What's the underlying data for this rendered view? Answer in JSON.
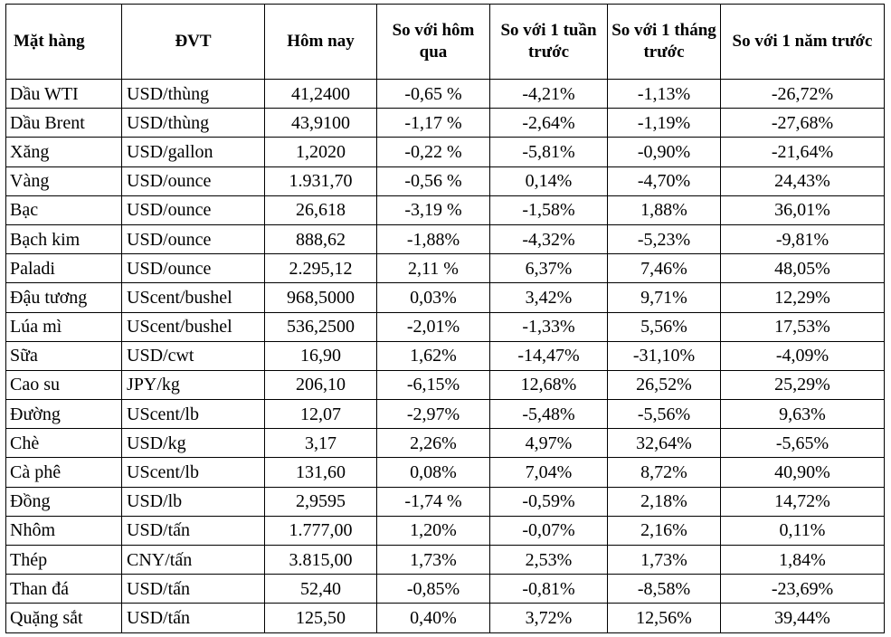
{
  "headers": [
    "Mặt hàng",
    "ĐVT",
    "Hôm nay",
    "So với hôm qua",
    "So với 1 tuần trước",
    "So với 1 tháng trước",
    "So với 1 năm trước"
  ],
  "rows": [
    [
      "Dầu WTI",
      "USD/thùng",
      "41,2400",
      "-0,65 %",
      "-4,21%",
      "-1,13%",
      "-26,72%"
    ],
    [
      "Dầu Brent",
      "USD/thùng",
      "43,9100",
      "-1,17 %",
      "-2,64%",
      "-1,19%",
      "-27,68%"
    ],
    [
      "Xăng",
      "USD/gallon",
      "1,2020",
      "-0,22 %",
      "-5,81%",
      "-0,90%",
      "-21,64%"
    ],
    [
      "Vàng",
      "USD/ounce",
      "1.931,70",
      "-0,56 %",
      "0,14%",
      "-4,70%",
      "24,43%"
    ],
    [
      "Bạc",
      "USD/ounce",
      "26,618",
      "-3,19 %",
      "-1,58%",
      "1,88%",
      "36,01%"
    ],
    [
      "Bạch kim",
      "USD/ounce",
      "888,62",
      "-1,88%",
      "-4,32%",
      "-5,23%",
      "-9,81%"
    ],
    [
      "Paladi",
      "USD/ounce",
      "2.295,12",
      "2,11 %",
      "6,37%",
      "7,46%",
      "48,05%"
    ],
    [
      "Đậu tương",
      "UScent/bushel",
      "968,5000",
      "0,03%",
      "3,42%",
      "9,71%",
      "12,29%"
    ],
    [
      "Lúa mì",
      "UScent/bushel",
      "536,2500",
      "-2,01%",
      "-1,33%",
      "5,56%",
      "17,53%"
    ],
    [
      "Sữa",
      "USD/cwt",
      "16,90",
      "1,62%",
      "-14,47%",
      "-31,10%",
      "-4,09%"
    ],
    [
      "Cao su",
      "JPY/kg",
      "206,10",
      "-6,15%",
      "12,68%",
      "26,52%",
      "25,29%"
    ],
    [
      "Đường",
      "UScent/lb",
      "12,07",
      "-2,97%",
      "-5,48%",
      "-5,56%",
      "9,63%"
    ],
    [
      "Chè",
      "USD/kg",
      "3,17",
      "2,26%",
      "4,97%",
      "32,64%",
      "-5,65%"
    ],
    [
      "Cà phê",
      "UScent/lb",
      "131,60",
      "0,08%",
      "7,04%",
      "8,72%",
      "40,90%"
    ],
    [
      "Đồng",
      "USD/lb",
      "2,9595",
      "-1,74 %",
      "-0,59%",
      "2,18%",
      "14,72%"
    ],
    [
      "Nhôm",
      "USD/tấn",
      "1.777,00",
      "1,20%",
      "-0,07%",
      "2,16%",
      "0,11%"
    ],
    [
      "Thép",
      "CNY/tấn",
      "3.815,00",
      "1,73%",
      "2,53%",
      "1,73%",
      "1,84%"
    ],
    [
      "Than đá",
      "USD/tấn",
      "52,40",
      "-0,85%",
      "-0,81%",
      "-8,58%",
      "-23,69%"
    ],
    [
      "Quặng sắt",
      "USD/tấn",
      "125,50",
      "0,40%",
      "3,72%",
      "12,56%",
      "39,44%"
    ]
  ]
}
